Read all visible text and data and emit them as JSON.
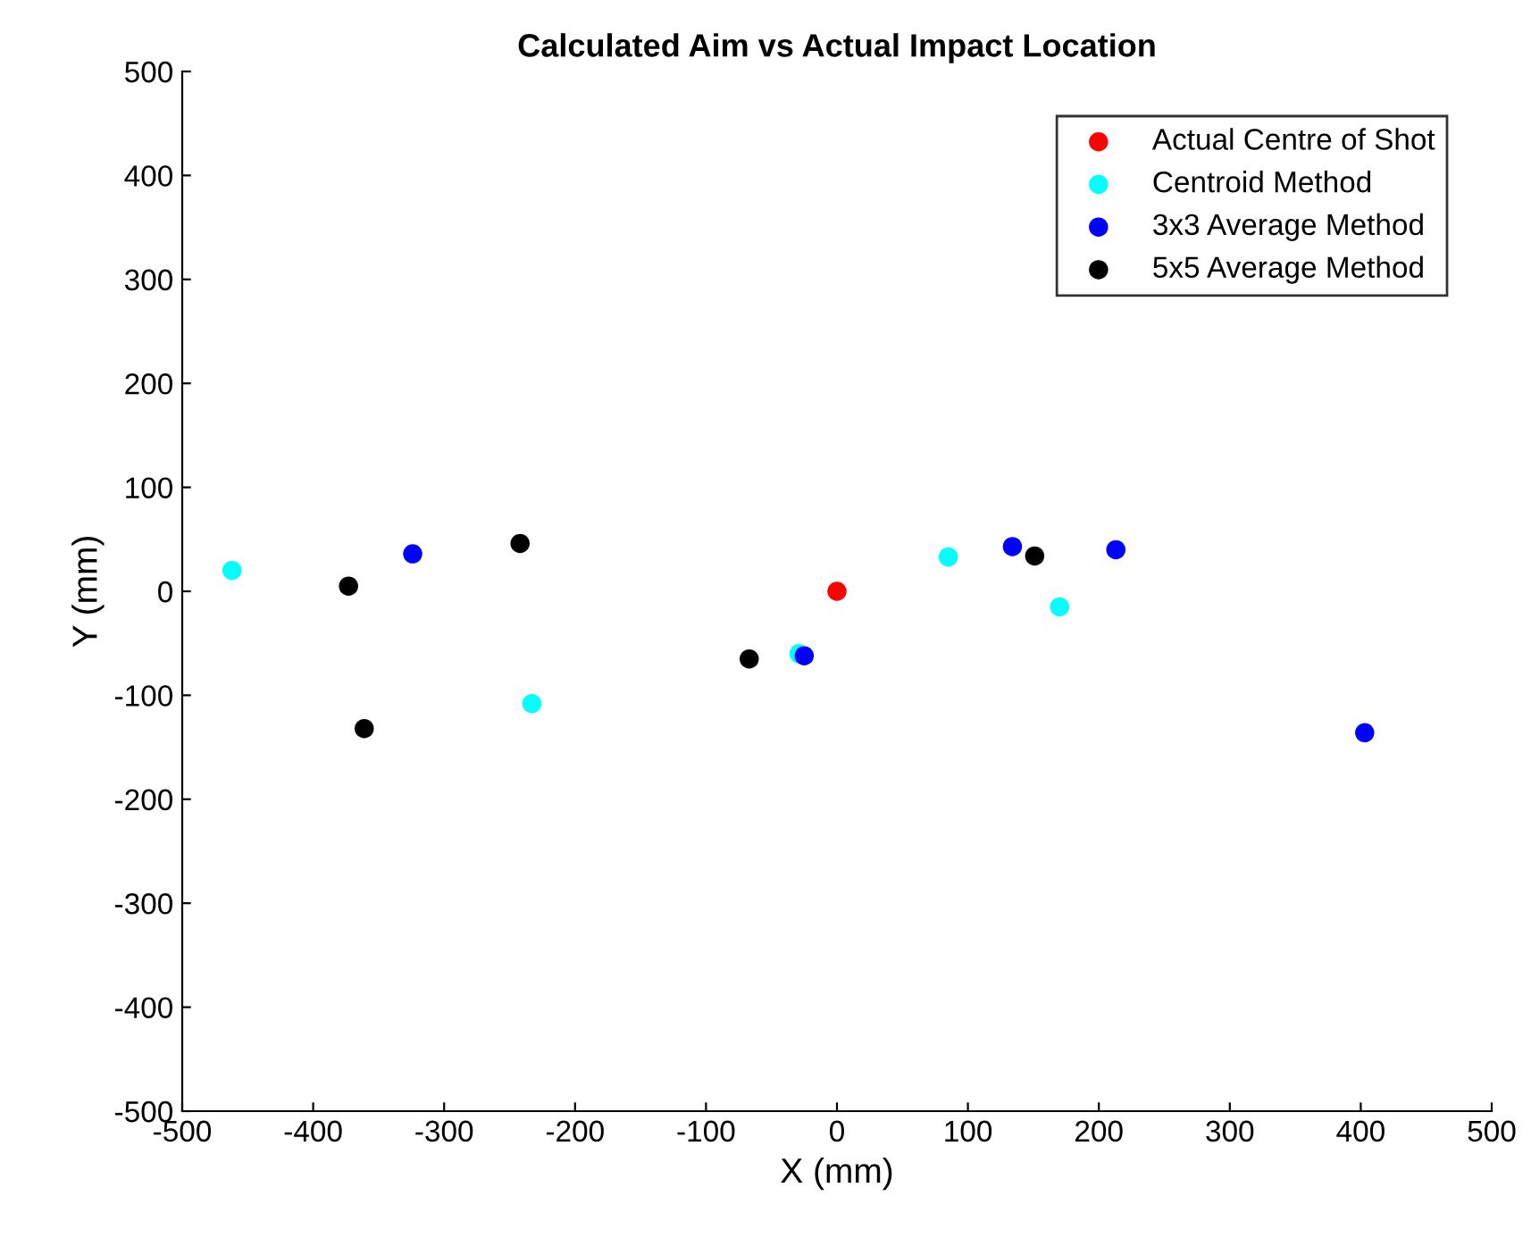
{
  "chart_data": {
    "type": "scatter",
    "title": "Calculated Aim vs Actual Impact Location",
    "xlabel": "X (mm)",
    "ylabel": "Y (mm)",
    "xlim": [
      -500,
      500
    ],
    "ylim": [
      -500,
      500
    ],
    "xticks": [
      -500,
      -400,
      -300,
      -200,
      -100,
      0,
      100,
      200,
      300,
      400,
      500
    ],
    "yticks": [
      -500,
      -400,
      -300,
      -200,
      -100,
      0,
      100,
      200,
      300,
      400,
      500
    ],
    "grid": false,
    "legend": "top right",
    "marker": "circle",
    "series": [
      {
        "name": "Actual Centre of Shot",
        "color": "#ff0000",
        "x": [
          0
        ],
        "values": [
          0
        ]
      },
      {
        "name": "Centroid Method",
        "color": "#00ffff",
        "x": [
          -462,
          -233,
          -29,
          85,
          170
        ],
        "values": [
          20,
          -108,
          -60,
          33,
          -15
        ]
      },
      {
        "name": "3x3 Average Method",
        "color": "#0000ff",
        "x": [
          -324,
          -25,
          134,
          213,
          403
        ],
        "values": [
          36,
          -62,
          43,
          40,
          -136
        ]
      },
      {
        "name": "5x5 Average Method",
        "color": "#000000",
        "x": [
          -373,
          -361,
          -242,
          -67,
          151
        ],
        "values": [
          5,
          -132,
          46,
          -65,
          34
        ]
      }
    ]
  }
}
